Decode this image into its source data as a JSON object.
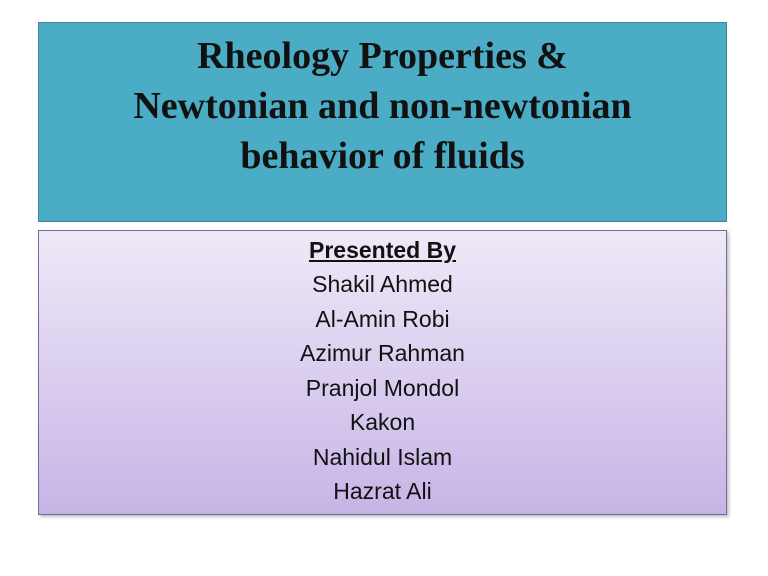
{
  "slide": {
    "title": "Rheology Properties & Newtonian and non-newtonian behavior of fluids",
    "title_lines": [
      "Rheology Properties &",
      "Newtonian and non-newtonian",
      "behavior of fluids"
    ],
    "presented_by_label": "Presented By",
    "presenters": [
      "Shakil Ahmed",
      "Al-Amin Robi",
      "Azimur Rahman",
      "Pranjol Mondol",
      "Kakon",
      "Nahidul Islam",
      "Hazrat Ali"
    ]
  },
  "colors": {
    "title_box": "#4bacc6",
    "content_gradient_top": "#efe9f8",
    "content_gradient_bottom": "#c7b4e6"
  }
}
